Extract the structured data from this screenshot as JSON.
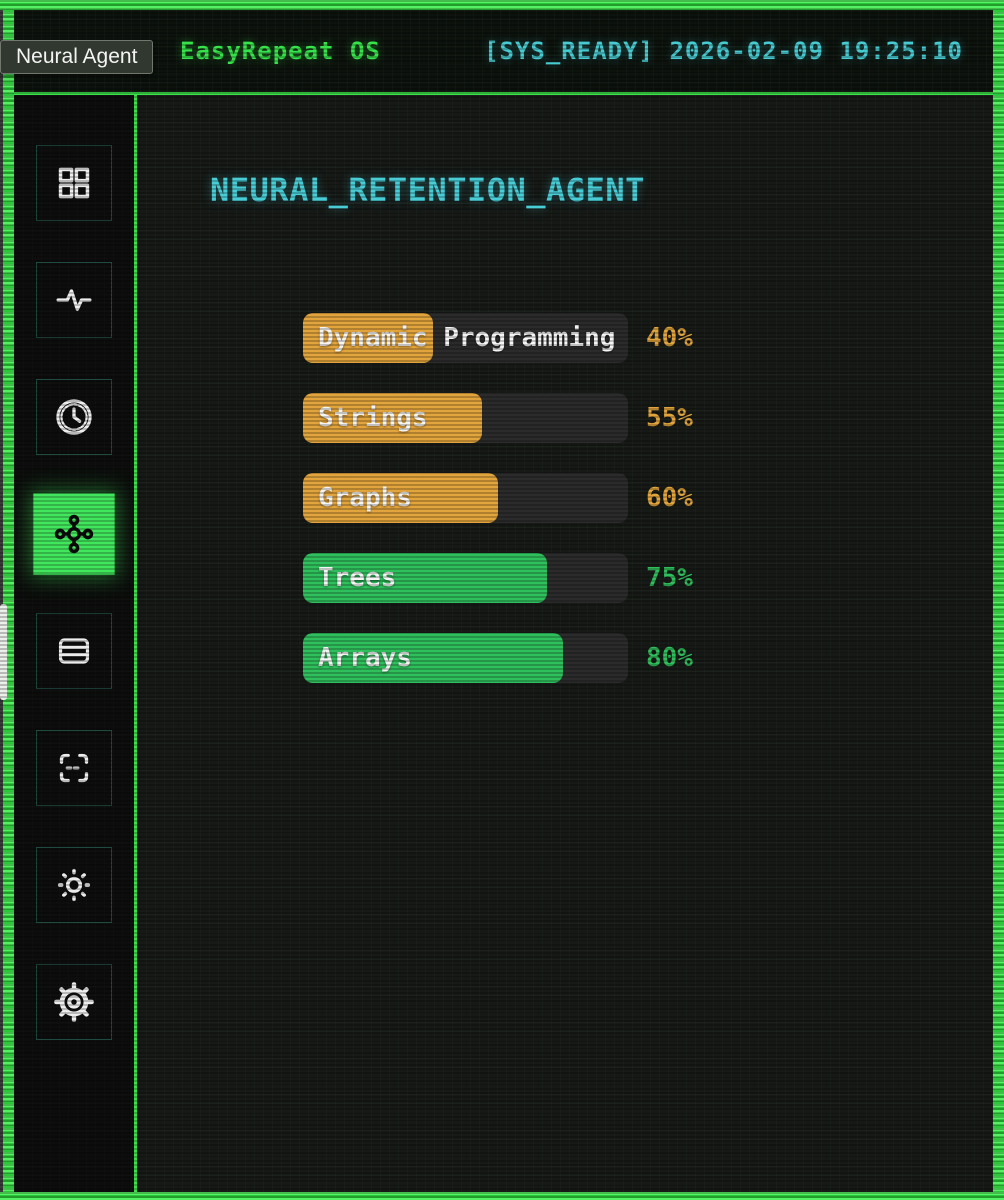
{
  "window": {
    "tooltip_label": "Neural Agent"
  },
  "header": {
    "app_title": "EasyRepeat OS",
    "status_text": "[SYS_READY] 2026-02-09 19:25:10"
  },
  "sidebar": {
    "active_index": 3,
    "items": [
      {
        "name": "dashboard",
        "icon": "grid-icon"
      },
      {
        "name": "activity",
        "icon": "activity-icon"
      },
      {
        "name": "history",
        "icon": "clock-icon"
      },
      {
        "name": "neural-network",
        "icon": "network-icon"
      },
      {
        "name": "data",
        "icon": "server-icon"
      },
      {
        "name": "scan",
        "icon": "scan-icon"
      },
      {
        "name": "display",
        "icon": "brightness-icon"
      },
      {
        "name": "settings",
        "icon": "gear-icon"
      }
    ]
  },
  "main": {
    "title": "NEURAL_RETENTION_AGENT"
  },
  "chart_data": {
    "type": "bar",
    "orientation": "horizontal",
    "title": "NEURAL_RETENTION_AGENT",
    "categories": [
      "Dynamic Programming",
      "Strings",
      "Graphs",
      "Trees",
      "Arrays"
    ],
    "values": [
      40,
      55,
      60,
      75,
      80
    ],
    "value_labels": [
      "40%",
      "55%",
      "60%",
      "75%",
      "80%"
    ],
    "unit": "%",
    "xlim": [
      0,
      100
    ],
    "grid": false,
    "legend": false,
    "bar_colors": [
      "#e2a43c",
      "#e2a43c",
      "#e2a43c",
      "#2fbf5c",
      "#2fbf5c"
    ],
    "track_color": "#2b2b2b"
  },
  "colors": {
    "frame_green": "#3ce04a",
    "active_green": "#41e65c",
    "cyan": "#48ccd6",
    "header_green": "#36e34a",
    "orange": "#e2a43c",
    "green": "#2fbf5c"
  }
}
